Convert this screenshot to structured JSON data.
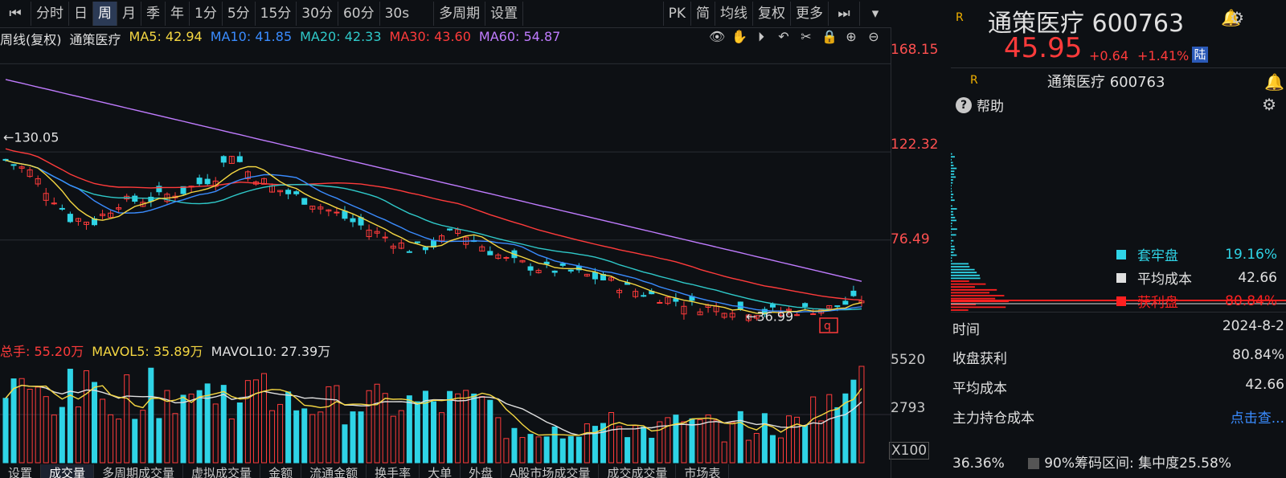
{
  "toolbar": {
    "items": [
      "分时",
      "日",
      "周",
      "月",
      "季",
      "年",
      "1分",
      "5分",
      "15分",
      "30分",
      "60分",
      "30s",
      "多周期",
      "设置"
    ],
    "active_index": 2,
    "right_items": [
      "PK",
      "简",
      "均线",
      "复权",
      "更多"
    ]
  },
  "ma_line": {
    "title": "周线(复权)",
    "name": "通策医疗",
    "ma5": "MA5: 42.94",
    "ma10": "MA10: 41.85",
    "ma20": "MA20: 42.33",
    "ma30": "MA30: 43.60",
    "ma60": "MA60: 54.87"
  },
  "colors": {
    "ma5": "#f5d742",
    "ma10": "#3a8cff",
    "ma20": "#2fc9c9",
    "ma30": "#ff3b3b",
    "ma60": "#c07cff",
    "up": "#ff3b3b",
    "down": "#2fd4e6",
    "text_red": "#ff3b3b"
  },
  "price_axis": [
    "168.15",
    "122.32",
    "76.49"
  ],
  "annotations": {
    "high": "130.05",
    "low": "36.99",
    "q_mark": "q"
  },
  "volume_line": {
    "total": "总手: 55.20万",
    "mavol5": "MAVOL5: 35.89万",
    "mavol10": "MAVOL10: 27.39万"
  },
  "volume_axis": [
    "5520",
    "2793"
  ],
  "volume_unit": "X100",
  "bottom_tabs": [
    "设置",
    "成交量",
    "多周期成交量",
    "虚拟成交量",
    "金额",
    "流通金额",
    "换手率",
    "大单",
    "外盘",
    "A股市场成交量",
    "成交成交量",
    "市场表"
  ],
  "right_panel": {
    "stock_name": "通策医疗 600763",
    "price": "45.95",
    "change": "+0.64",
    "change_pct": "+1.41%",
    "market_tag": "陆",
    "r_mark": "R",
    "sub_name": "通策医疗 600763",
    "help": "帮助",
    "legend": [
      {
        "label": "套牢盘",
        "value": "19.16%",
        "color": "#2fd4e6"
      },
      {
        "label": "平均成本",
        "value": "42.66",
        "color": "#e0e0e0"
      },
      {
        "label": "获利盘",
        "value": "80.84%",
        "color": "#ff2020"
      }
    ],
    "info": [
      {
        "k": "时间",
        "v": "2024-8-2"
      },
      {
        "k": "收盘获利",
        "v": "80.84%"
      },
      {
        "k": "平均成本",
        "v": "42.66"
      },
      {
        "k": "主力持仓成本",
        "v": "点击查..."
      }
    ],
    "footer_pct": "36.36%",
    "footer_range": "90%筹码区间: 集中度25.58%"
  }
}
